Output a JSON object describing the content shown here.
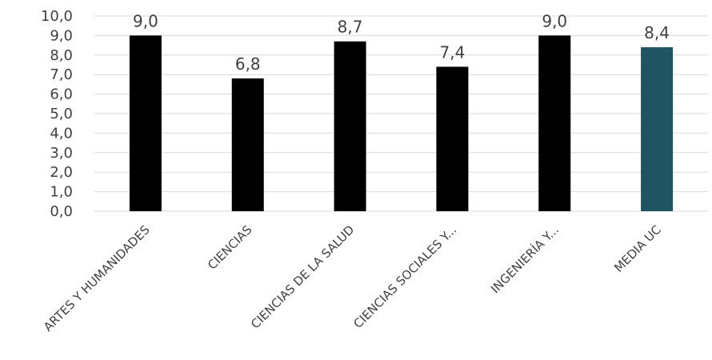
{
  "chart_data": {
    "type": "bar",
    "title": "",
    "xlabel": "",
    "ylabel": "",
    "ylim": [
      0,
      10
    ],
    "y_ticks": [
      "0,0",
      "1,0",
      "2,0",
      "3,0",
      "4,0",
      "5,0",
      "6,0",
      "7,0",
      "8,0",
      "9,0",
      "10,0"
    ],
    "grid": true,
    "legend": "none",
    "categories": [
      "ARTES Y HUMANIDADES",
      "CIENCIAS",
      "CIENCIAS DE LA SALUD",
      "CIENCIAS SOCIALES Y...",
      "INGENIERÍA Y...",
      "MEDIA UC"
    ],
    "values": [
      9.0,
      6.8,
      8.7,
      7.4,
      9.0,
      8.4
    ],
    "data_labels": [
      "9,0",
      "6,8",
      "8,7",
      "7,4",
      "9,0",
      "8,4"
    ],
    "colors": [
      "#000000",
      "#000000",
      "#000000",
      "#000000",
      "#000000",
      "#1f5563"
    ]
  }
}
